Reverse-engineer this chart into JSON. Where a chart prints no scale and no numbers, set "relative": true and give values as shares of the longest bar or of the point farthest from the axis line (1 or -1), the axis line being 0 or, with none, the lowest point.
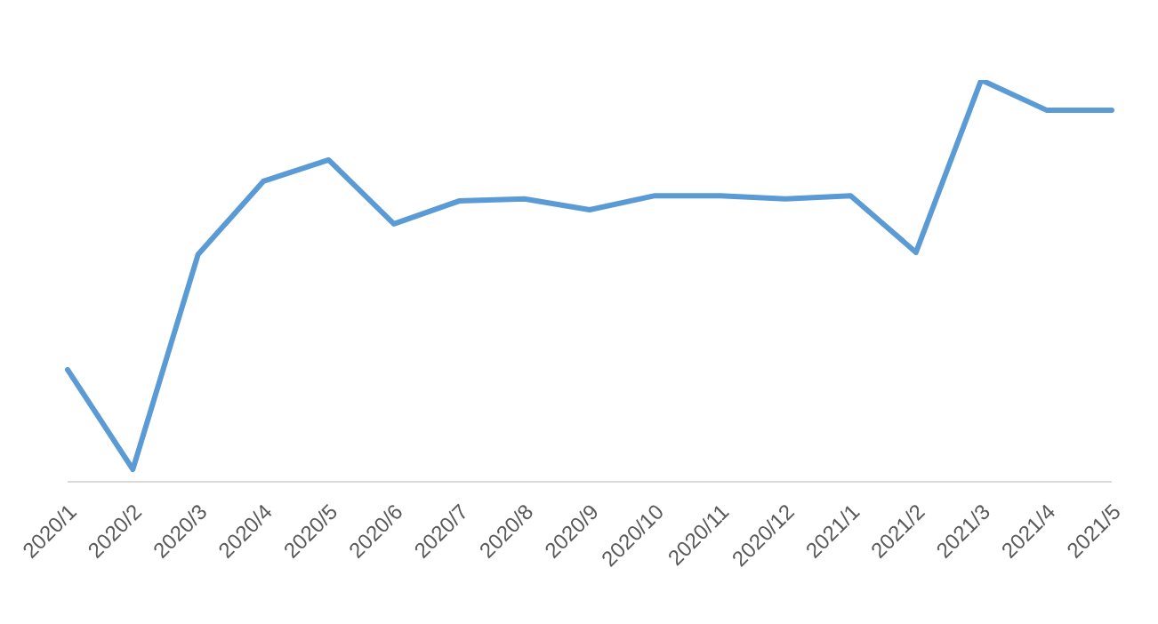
{
  "chart_data": {
    "type": "line",
    "relative": true,
    "categories": [
      "2020/1",
      "2020/2",
      "2020/3",
      "2020/4",
      "2020/5",
      "2020/6",
      "2020/7",
      "2020/8",
      "2020/9",
      "2020/10",
      "2020/11",
      "2020/12",
      "2021/1",
      "2021/2",
      "2021/3",
      "2021/4",
      "2021/5"
    ],
    "series": [
      {
        "color": "#5b9bd5",
        "values": [
          0.279,
          0.031,
          0.566,
          0.748,
          0.801,
          0.642,
          0.699,
          0.704,
          0.677,
          0.712,
          0.712,
          0.704,
          0.712,
          0.571,
          1,
          0.925,
          0.925
        ]
      }
    ]
  }
}
